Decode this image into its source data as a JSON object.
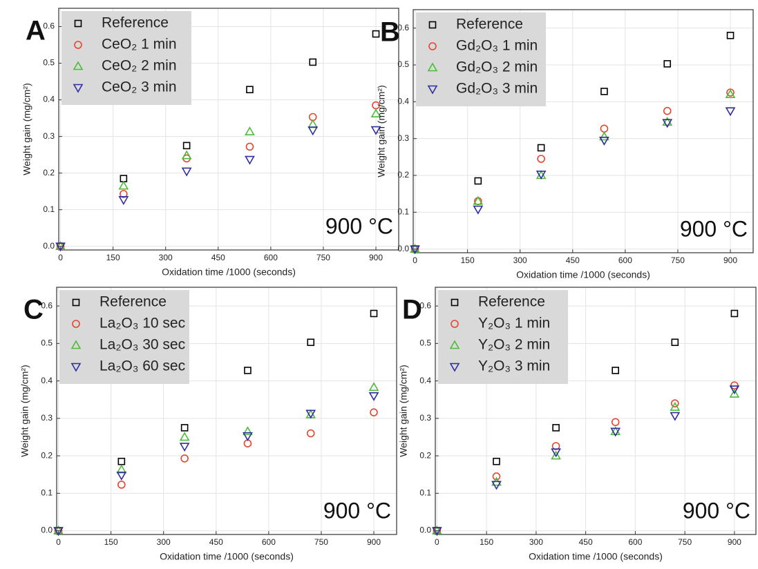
{
  "chart_data": [
    {
      "type": "scatter",
      "label": "A",
      "annotation": "900 °C",
      "x_label": "Oxidation time /1000 (seconds)",
      "y_label": "Weight gain (mg/cm²)",
      "x": [
        0,
        180,
        360,
        540,
        720,
        900
      ],
      "series": [
        {
          "name": "Reference",
          "color": "#000000",
          "marker": "square",
          "values": [
            0,
            0.185,
            0.275,
            0.428,
            0.503,
            0.58
          ]
        },
        {
          "name": "CeO₂ 1 min",
          "color": "#e8432c",
          "marker": "circle",
          "values": [
            0,
            0.143,
            0.24,
            0.272,
            0.353,
            0.385
          ]
        },
        {
          "name": "CeO₂ 2 min",
          "color": "#4cbb3a",
          "marker": "triangle-up",
          "values": [
            0,
            0.165,
            0.248,
            0.313,
            0.333,
            0.362
          ]
        },
        {
          "name": "CeO₂ 3 min",
          "color": "#2e2e9e",
          "marker": "triangle-down",
          "values": [
            0,
            0.127,
            0.205,
            0.237,
            0.317,
            0.318
          ]
        }
      ],
      "xlim": [
        -5,
        965
      ],
      "ylim": [
        -0.01,
        0.65
      ],
      "xticks": [
        0,
        150,
        300,
        450,
        600,
        750,
        900
      ],
      "yticks": [
        {
          "value": 0,
          "label": "0.0"
        },
        0.1,
        0.2,
        0.3,
        0.4,
        0.5,
        0.6
      ],
      "grid": true
    },
    {
      "type": "scatter",
      "label": "B",
      "annotation": "900 °C",
      "x_label": "Oxidation time /1000 (seconds)",
      "y_label": "Weight gain (mg/cm²)",
      "x": [
        0,
        180,
        360,
        540,
        720,
        900
      ],
      "series": [
        {
          "name": "Reference",
          "color": "#000000",
          "marker": "square",
          "values": [
            0,
            0.185,
            0.275,
            0.428,
            0.503,
            0.58
          ]
        },
        {
          "name": "Gd₂O₃ 1 min",
          "color": "#e8432c",
          "marker": "circle",
          "values": [
            0,
            0.13,
            0.245,
            0.327,
            0.375,
            0.425
          ]
        },
        {
          "name": "Gd₂O₃ 2 min",
          "color": "#4cbb3a",
          "marker": "triangle-up",
          "values": [
            0,
            0.13,
            0.2,
            0.305,
            0.345,
            0.42
          ]
        },
        {
          "name": "Gd₂O₃ 3 min",
          "color": "#2e2e9e",
          "marker": "triangle-down",
          "values": [
            0,
            0.108,
            0.203,
            0.295,
            0.343,
            0.375
          ]
        }
      ],
      "xlim": [
        -5,
        965
      ],
      "ylim": [
        -0.01,
        0.65
      ],
      "xticks": [
        0,
        150,
        300,
        450,
        600,
        750,
        900
      ],
      "yticks": [
        {
          "value": 0,
          "label": "0.0"
        },
        0.1,
        0.2,
        0.3,
        0.4,
        0.5,
        0.6
      ],
      "grid": true
    },
    {
      "type": "scatter",
      "label": "C",
      "annotation": "900 °C",
      "x_label": "Oxidation time /1000 (seconds)",
      "y_label": "Weight gain (mg/cm²)",
      "x": [
        0,
        180,
        360,
        540,
        720,
        900
      ],
      "series": [
        {
          "name": "Reference",
          "color": "#000000",
          "marker": "square",
          "values": [
            0,
            0.185,
            0.275,
            0.428,
            0.503,
            0.58
          ]
        },
        {
          "name": "La₂O₃ 10 sec",
          "color": "#e8432c",
          "marker": "circle",
          "values": [
            0,
            0.123,
            0.193,
            0.233,
            0.26,
            0.316
          ]
        },
        {
          "name": "La₂O₃ 30 sec",
          "color": "#4cbb3a",
          "marker": "triangle-up",
          "values": [
            0,
            0.163,
            0.25,
            0.265,
            0.31,
            0.383
          ]
        },
        {
          "name": "La₂O₃ 60 sec",
          "color": "#2e2e9e",
          "marker": "triangle-down",
          "values": [
            0,
            0.148,
            0.225,
            0.253,
            0.313,
            0.36
          ]
        }
      ],
      "xlim": [
        -5,
        965
      ],
      "ylim": [
        -0.01,
        0.65
      ],
      "xticks": [
        0,
        150,
        300,
        450,
        600,
        750,
        900
      ],
      "yticks": [
        {
          "value": 0,
          "label": "0.0"
        },
        0.1,
        0.2,
        0.3,
        0.4,
        0.5,
        0.6
      ],
      "grid": true
    },
    {
      "type": "scatter",
      "label": "D",
      "annotation": "900 °C",
      "x_label": "Oxidation time /1000 (seconds)",
      "y_label": "Weight gain (mg/cm²)",
      "x": [
        0,
        180,
        360,
        540,
        720,
        900
      ],
      "series": [
        {
          "name": "Reference",
          "color": "#000000",
          "marker": "square",
          "values": [
            0,
            0.185,
            0.275,
            0.428,
            0.503,
            0.58
          ]
        },
        {
          "name": "Y₂O₃ 1 min",
          "color": "#e8432c",
          "marker": "circle",
          "values": [
            0,
            0.145,
            0.226,
            0.29,
            0.34,
            0.388
          ]
        },
        {
          "name": "Y₂O₃ 2 min",
          "color": "#4cbb3a",
          "marker": "triangle-up",
          "values": [
            0,
            0.13,
            0.2,
            0.265,
            0.33,
            0.365
          ]
        },
        {
          "name": "Y₂O₃ 3 min",
          "color": "#2e2e9e",
          "marker": "triangle-down",
          "values": [
            0,
            0.123,
            0.21,
            0.265,
            0.307,
            0.378
          ]
        }
      ],
      "xlim": [
        -5,
        965
      ],
      "ylim": [
        -0.01,
        0.65
      ],
      "xticks": [
        0,
        150,
        300,
        450,
        600,
        750,
        900
      ],
      "yticks": [
        {
          "value": 0,
          "label": "0.0"
        },
        0.1,
        0.2,
        0.3,
        0.4,
        0.5,
        0.6
      ],
      "grid": true
    }
  ]
}
